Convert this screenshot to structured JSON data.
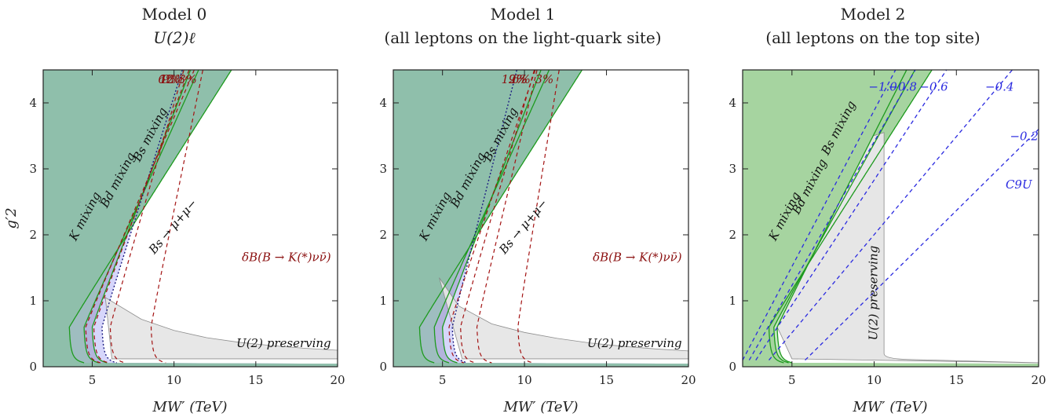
{
  "figure": {
    "colors": {
      "k_mixing": "#8fbfab",
      "bd_mixing": "#9fbdc0",
      "bs_mixing": "#b3b3dc",
      "bsmumu": "#d6d6fb",
      "model2_mixing": "#a6d4a0",
      "model2_bs": "#c5e6c1",
      "u2": "#e6e6e6",
      "green_line": "#1d9a1d",
      "red_line": "#a31212",
      "blue_line": "#2a2ae0",
      "blue_text": "#2a2ae0",
      "red_text": "#8b1010"
    }
  },
  "chart_data": [
    {
      "type": "area",
      "title": "Model 0",
      "subtitle": "U(2)ℓ",
      "xlabel": "MW′ (TeV)",
      "ylabel": "g′2",
      "xlim": [
        2,
        20
      ],
      "ylim": [
        0,
        4.5
      ],
      "xticks": [
        5,
        10,
        15,
        20
      ],
      "yticks": [
        0,
        1,
        2,
        3,
        4
      ],
      "boundaries": {
        "k_mixing": {
          "m0": 3.5,
          "slope": 0.39
        },
        "bd_mixing": {
          "m0": 4.4,
          "slope": 0.55
        },
        "bs_mixing": {
          "m0": 4.9,
          "slope": 0.64
        },
        "bs_mumu": {
          "m0": 5.5,
          "slope": 0.78
        }
      },
      "u2_preserving": {
        "x": [
          5.8,
          8,
          10,
          12,
          14,
          16,
          18,
          20
        ],
        "y": [
          1.05,
          0.72,
          0.55,
          0.44,
          0.37,
          0.32,
          0.28,
          0.25
        ]
      },
      "red_contours": [
        {
          "label": "12%",
          "m0": 4.5,
          "slope": 0.58
        },
        {
          "label": "9%",
          "m0": 5.0,
          "slope": 0.66
        },
        {
          "label": "6%",
          "m0": 6.0,
          "slope": 0.85
        },
        {
          "label": "3%",
          "m0": 8.5,
          "slope": 1.2
        }
      ],
      "labels": {
        "k_mixing": "K mixing",
        "bd_mixing": "Bd mixing",
        "bs_mixing": "Bs mixing",
        "bs_mumu": "Bs → μ+μ−",
        "u2_preserving": "U(2) preserving",
        "delta_b": "δB(B → K(*)νν̄)"
      }
    },
    {
      "type": "area",
      "title": "Model 1",
      "subtitle": "(all leptons on the light-quark site)",
      "xlabel": "MW′ (TeV)",
      "ylabel": "",
      "xlim": [
        2,
        20
      ],
      "ylim": [
        0,
        4.5
      ],
      "xticks": [
        5,
        10,
        15,
        20
      ],
      "yticks": [
        0,
        1,
        2,
        3,
        4
      ],
      "boundaries": {
        "k_mixing": {
          "m0": 3.5,
          "slope": 0.39
        },
        "bd_mixing": {
          "m0": 4.4,
          "slope": 0.55
        },
        "bs_mixing": {
          "m0": 4.9,
          "slope": 0.64
        },
        "bs_mumu": {
          "m0": 5.5,
          "slope": 0.97
        }
      },
      "u2_preserving": {
        "x": [
          4.8,
          6,
          8,
          10,
          12,
          14,
          16,
          18,
          20
        ],
        "y": [
          1.35,
          0.92,
          0.65,
          0.52,
          0.43,
          0.36,
          0.31,
          0.27,
          0.24
        ]
      },
      "red_contours": [
        {
          "label": "12%",
          "m0": 5.3,
          "slope": 0.73
        },
        {
          "label": "9%",
          "m0": 6.0,
          "slope": 0.85
        },
        {
          "label": "6%",
          "m0": 7.0,
          "slope": 1.04
        },
        {
          "label": "3%",
          "m0": 9.5,
          "slope": 1.5
        }
      ],
      "labels": {
        "k_mixing": "K mixing",
        "bd_mixing": "Bd mixing",
        "bs_mixing": "Bs mixing",
        "bs_mumu": "Bs → μ+μ−",
        "u2_preserving": "U(2) preserving",
        "delta_b": "δB(B → K(*)νν̄)"
      }
    },
    {
      "type": "area",
      "title": "Model 2",
      "subtitle": "(all leptons on the top site)",
      "xlabel": "MW′ (TeV)",
      "ylabel": "",
      "xlim": [
        2,
        20
      ],
      "ylim": [
        0,
        4.5
      ],
      "xticks": [
        5,
        10,
        15,
        20
      ],
      "yticks": [
        0,
        1,
        2,
        3,
        4
      ],
      "boundaries": {
        "k_mixing": {
          "m0": 3.5,
          "slope": 0.39
        },
        "bd_mixing": {
          "m0": 3.8,
          "slope": 0.45
        },
        "bs_mixing": {
          "m0": 4.0,
          "slope": 0.49
        }
      },
      "u2_preserving": {
        "right_edge_x": 10.6,
        "top_y": 3.55
      },
      "blue_lines": [
        {
          "label": "−1.0",
          "x0": 2.0,
          "y0": 0.1,
          "x1": 11.3,
          "y1": 4.5
        },
        {
          "label": "−0.8",
          "x0": 2.4,
          "y0": 0.1,
          "x1": 12.5,
          "y1": 4.5
        },
        {
          "label": "−0.6",
          "x0": 2.8,
          "y0": 0.1,
          "x1": 14.4,
          "y1": 4.5
        },
        {
          "label": "−0.4",
          "x0": 3.6,
          "y0": 0.1,
          "x1": 18.4,
          "y1": 4.5
        },
        {
          "label": "−0.2",
          "x0": 5.8,
          "y0": 0.1,
          "x1": 20.0,
          "y1": 3.6
        }
      ],
      "labels": {
        "k_mixing": "K mixing",
        "bd_mixing": "Bd mixing",
        "bs_mixing": "Bs mixing",
        "u2_preserving": "U(2) preserving",
        "c9": "C9U"
      }
    }
  ]
}
